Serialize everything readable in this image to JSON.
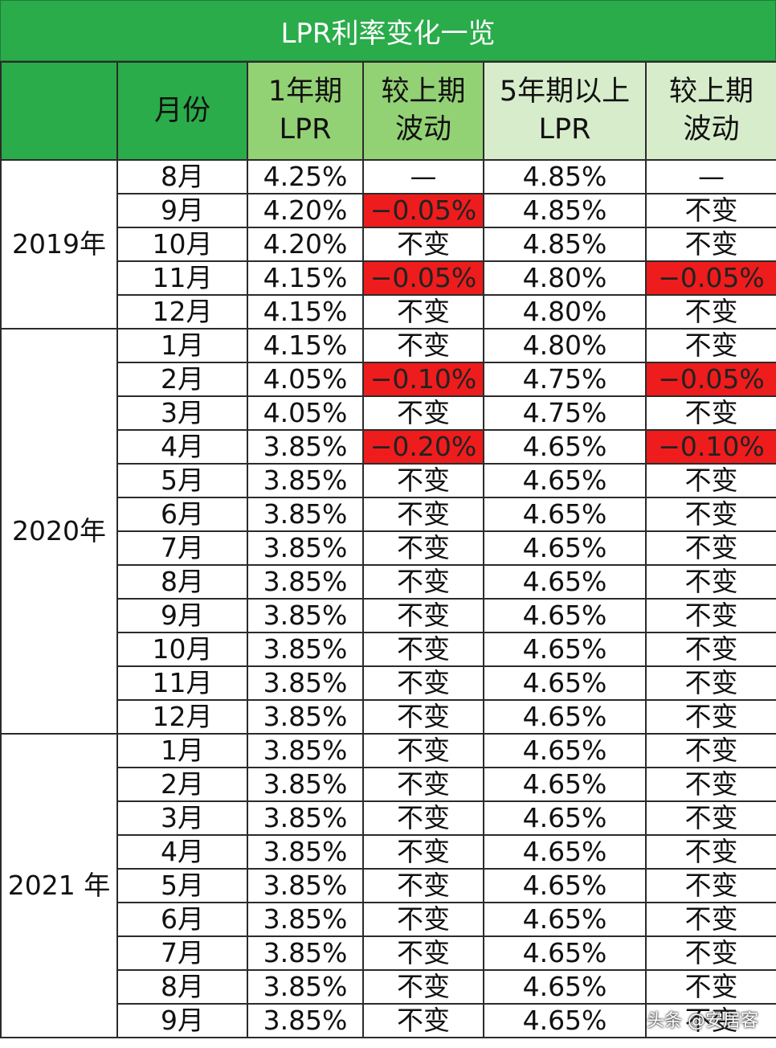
{
  "title": "LPR利率变化一览",
  "headers": {
    "month": "月份",
    "one_year_line1": "1年期",
    "one_year_line2": "LPR",
    "change1_line1": "较上期",
    "change1_line2": "波动",
    "five_year_line1": "5年期以上",
    "five_year_line2": "LPR",
    "change5_line1": "较上期",
    "change5_line2": "波动"
  },
  "groups": [
    {
      "year": "2019年",
      "rows": [
        {
          "month": "8月",
          "one_year": "4.25%",
          "change1": "—",
          "five_year": "4.85%",
          "change5": "—"
        },
        {
          "month": "9月",
          "one_year": "4.20%",
          "change1": "−0.05%",
          "five_year": "4.85%",
          "change5": "不变"
        },
        {
          "month": "10月",
          "one_year": "4.20%",
          "change1": "不变",
          "five_year": "4.85%",
          "change5": "不变"
        },
        {
          "month": "11月",
          "one_year": "4.15%",
          "change1": "−0.05%",
          "five_year": "4.80%",
          "change5": "−0.05%"
        },
        {
          "month": "12月",
          "one_year": "4.15%",
          "change1": "不变",
          "five_year": "4.80%",
          "change5": "不变"
        }
      ]
    },
    {
      "year": "2020年",
      "rows": [
        {
          "month": "1月",
          "one_year": "4.15%",
          "change1": "不变",
          "five_year": "4.80%",
          "change5": "不变"
        },
        {
          "month": "2月",
          "one_year": "4.05%",
          "change1": "−0.10%",
          "five_year": "4.75%",
          "change5": "−0.05%"
        },
        {
          "month": "3月",
          "one_year": "4.05%",
          "change1": "不变",
          "five_year": "4.75%",
          "change5": "不变"
        },
        {
          "month": "4月",
          "one_year": "3.85%",
          "change1": "−0.20%",
          "five_year": "4.65%",
          "change5": "−0.10%"
        },
        {
          "month": "5月",
          "one_year": "3.85%",
          "change1": "不变",
          "five_year": "4.65%",
          "change5": "不变"
        },
        {
          "month": "6月",
          "one_year": "3.85%",
          "change1": "不变",
          "five_year": "4.65%",
          "change5": "不变"
        },
        {
          "month": "7月",
          "one_year": "3.85%",
          "change1": "不变",
          "five_year": "4.65%",
          "change5": "不变"
        },
        {
          "month": "8月",
          "one_year": "3.85%",
          "change1": "不变",
          "five_year": "4.65%",
          "change5": "不变"
        },
        {
          "month": "9月",
          "one_year": "3.85%",
          "change1": "不变",
          "five_year": "4.65%",
          "change5": "不变"
        },
        {
          "month": "10月",
          "one_year": "3.85%",
          "change1": "不变",
          "five_year": "4.65%",
          "change5": "不变"
        },
        {
          "month": "11月",
          "one_year": "3.85%",
          "change1": "不变",
          "five_year": "4.65%",
          "change5": "不变"
        },
        {
          "month": "12月",
          "one_year": "3.85%",
          "change1": "不变",
          "five_year": "4.65%",
          "change5": "不变"
        }
      ]
    },
    {
      "year": "2021 年",
      "rows": [
        {
          "month": "1月",
          "one_year": "3.85%",
          "change1": "不变",
          "five_year": "4.65%",
          "change5": "不变"
        },
        {
          "month": "2月",
          "one_year": "3.85%",
          "change1": "不变",
          "five_year": "4.65%",
          "change5": "不变"
        },
        {
          "month": "3月",
          "one_year": "3.85%",
          "change1": "不变",
          "five_year": "4.65%",
          "change5": "不变"
        },
        {
          "month": "4月",
          "one_year": "3.85%",
          "change1": "不变",
          "five_year": "4.65%",
          "change5": "不变"
        },
        {
          "month": "5月",
          "one_year": "3.85%",
          "change1": "不变",
          "five_year": "4.65%",
          "change5": "不变"
        },
        {
          "month": "6月",
          "one_year": "3.85%",
          "change1": "不变",
          "five_year": "4.65%",
          "change5": "不变"
        },
        {
          "month": "7月",
          "one_year": "3.85%",
          "change1": "不变",
          "five_year": "4.65%",
          "change5": "不变"
        },
        {
          "month": "8月",
          "one_year": "3.85%",
          "change1": "不变",
          "five_year": "4.65%",
          "change5": "不变"
        },
        {
          "month": "9月",
          "one_year": "3.85%",
          "change1": "不变",
          "five_year": "4.65%",
          "change5": "不变"
        }
      ]
    }
  ],
  "watermark": "头条 @安居客",
  "colors": {
    "title_green": "#2aac4a",
    "header_light_green": "#93d175",
    "header_pale_green": "#d7eccb",
    "decrease_red": "#ee1c1c"
  }
}
